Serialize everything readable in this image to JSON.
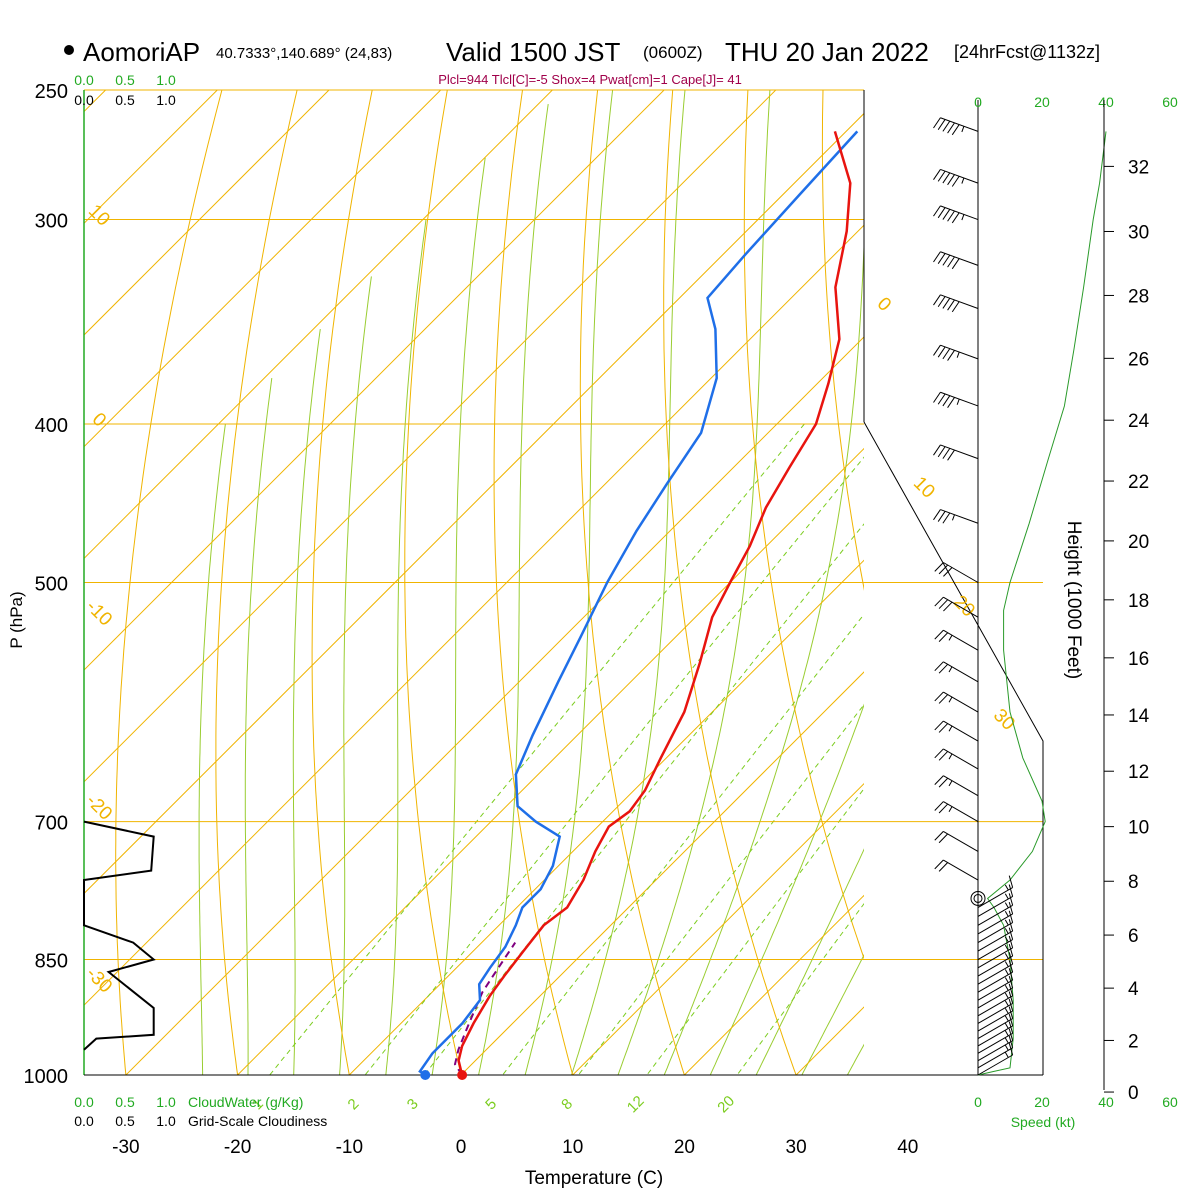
{
  "header": {
    "station": "AomoriAP",
    "coords": "40.7333°,140.689° (24,83)",
    "valid_prefix": "Valid 1500 JST",
    "valid_z": "(0600Z)",
    "valid_date": "THU 20 Jan 2022",
    "fcst": "[24hrFcst@1132z]",
    "indices": "Plcl=944 Tlcl[C]=-5 Shox=4 Pwat[cm]=1 Cape[J]= 41"
  },
  "colors": {
    "temperature": "#e8140f",
    "dewpoint": "#1f6fe8",
    "isotherm": "#f0b400",
    "dry_adiabat": "#f0b400",
    "moist_adiabat": "#9acd32",
    "mixing_ratio": "#7ccd20",
    "parcel": "#800080",
    "green_text": "#22aa22",
    "indices_text": "#a0004a"
  },
  "chart_data": {
    "type": "line",
    "title": "AomoriAP Valid 1500 JST (0600Z) THU 20 Jan 2022 [24hrFcst@1132z]",
    "xlabel": "Temperature (C)",
    "ylabel": "P (hPa)",
    "y2label": "Height (1000 Feet)",
    "y_scale": "log",
    "y_reversed": true,
    "x_ticks": [
      "-30",
      "-20",
      "-10",
      "0",
      "10",
      "20",
      "30",
      "40"
    ],
    "p_ticks": [
      "250",
      "300",
      "400",
      "500",
      "700",
      "850",
      "1000"
    ],
    "height_ticks": [
      "0",
      "2",
      "4",
      "6",
      "8",
      "10",
      "12",
      "14",
      "16",
      "18",
      "20",
      "22",
      "24",
      "26",
      "28",
      "30",
      "32"
    ],
    "isotherm_labels": [
      "10",
      "0",
      "-10",
      "-20",
      "-30",
      "0",
      "10",
      "20",
      "30"
    ],
    "mixing_ratio_labels": [
      "1",
      "2",
      "3",
      "5",
      "8",
      "12",
      "20"
    ],
    "series": [
      {
        "name": "Temperature",
        "points": [
          [
            0.1,
            1000
          ],
          [
            -1.5,
            980
          ],
          [
            -2.5,
            960
          ],
          [
            -3.5,
            930
          ],
          [
            -4.5,
            895
          ],
          [
            -5.0,
            870
          ],
          [
            -5.5,
            840
          ],
          [
            -6.0,
            810
          ],
          [
            -5.5,
            790
          ],
          [
            -6.5,
            760
          ],
          [
            -8.0,
            730
          ],
          [
            -9.0,
            705
          ],
          [
            -8.5,
            690
          ],
          [
            -9.0,
            670
          ],
          [
            -10.5,
            640
          ],
          [
            -12.5,
            600
          ],
          [
            -15.5,
            560
          ],
          [
            -18.5,
            525
          ],
          [
            -20.0,
            500
          ],
          [
            -21.5,
            475
          ],
          [
            -23.5,
            450
          ],
          [
            -25.0,
            425
          ],
          [
            -26.5,
            400
          ],
          [
            -29.0,
            378
          ],
          [
            -32.0,
            355
          ],
          [
            -37.0,
            330
          ],
          [
            -41.0,
            305
          ],
          [
            -45.0,
            285
          ],
          [
            -51.0,
            265
          ]
        ]
      },
      {
        "name": "Dewpoint",
        "points": [
          [
            -3.2,
            1000
          ],
          [
            -4.0,
            995
          ],
          [
            -4.5,
            970
          ],
          [
            -4.5,
            930
          ],
          [
            -5.0,
            900
          ],
          [
            -6.5,
            880
          ],
          [
            -7.0,
            860
          ],
          [
            -7.5,
            835
          ],
          [
            -8.5,
            810
          ],
          [
            -9.5,
            790
          ],
          [
            -9.5,
            770
          ],
          [
            -10.5,
            745
          ],
          [
            -12.5,
            715
          ],
          [
            -16.0,
            700
          ],
          [
            -19.0,
            685
          ],
          [
            -22.0,
            655
          ],
          [
            -24.0,
            620
          ],
          [
            -26.5,
            575
          ],
          [
            -28.5,
            540
          ],
          [
            -31.0,
            500
          ],
          [
            -33.0,
            465
          ],
          [
            -34.5,
            435
          ],
          [
            -36.0,
            405
          ],
          [
            -39.5,
            375
          ],
          [
            -44.0,
            350
          ],
          [
            -47.5,
            335
          ],
          [
            -48.0,
            315
          ],
          [
            -48.5,
            290
          ],
          [
            -49.0,
            265
          ]
        ]
      },
      {
        "name": "Parcel",
        "points": [
          [
            0.1,
            1000
          ],
          [
            -1.5,
            985
          ],
          [
            -2.5,
            965
          ],
          [
            -3.5,
            940
          ],
          [
            -4.5,
            915
          ],
          [
            -5.5,
            890
          ],
          [
            -6.0,
            870
          ],
          [
            -6.5,
            850
          ],
          [
            -7.0,
            830
          ]
        ]
      }
    ],
    "wind_barbs": [
      {
        "p": 1000,
        "speed": 15,
        "dir": 60
      },
      {
        "p": 990,
        "speed": 15,
        "dir": 60
      },
      {
        "p": 980,
        "speed": 15,
        "dir": 60
      },
      {
        "p": 970,
        "speed": 15,
        "dir": 60
      },
      {
        "p": 960,
        "speed": 15,
        "dir": 60
      },
      {
        "p": 950,
        "speed": 15,
        "dir": 60
      },
      {
        "p": 940,
        "speed": 15,
        "dir": 60
      },
      {
        "p": 930,
        "speed": 15,
        "dir": 60
      },
      {
        "p": 920,
        "speed": 15,
        "dir": 60
      },
      {
        "p": 910,
        "speed": 15,
        "dir": 60
      },
      {
        "p": 900,
        "speed": 15,
        "dir": 60
      },
      {
        "p": 890,
        "speed": 15,
        "dir": 60
      },
      {
        "p": 880,
        "speed": 15,
        "dir": 60
      },
      {
        "p": 870,
        "speed": 15,
        "dir": 60
      },
      {
        "p": 860,
        "speed": 15,
        "dir": 60
      },
      {
        "p": 850,
        "speed": 15,
        "dir": 60
      },
      {
        "p": 840,
        "speed": 15,
        "dir": 60
      },
      {
        "p": 830,
        "speed": 15,
        "dir": 60
      },
      {
        "p": 820,
        "speed": 15,
        "dir": 60
      },
      {
        "p": 810,
        "speed": 15,
        "dir": 60
      },
      {
        "p": 800,
        "speed": 15,
        "dir": 60
      },
      {
        "p": 790,
        "speed": 15,
        "dir": 60
      },
      {
        "p": 760,
        "speed": 20,
        "dir": 300
      },
      {
        "p": 730,
        "speed": 20,
        "dir": 300
      },
      {
        "p": 700,
        "speed": 25,
        "dir": 300
      },
      {
        "p": 675,
        "speed": 25,
        "dir": 300
      },
      {
        "p": 650,
        "speed": 25,
        "dir": 300
      },
      {
        "p": 625,
        "speed": 25,
        "dir": 300
      },
      {
        "p": 600,
        "speed": 25,
        "dir": 300
      },
      {
        "p": 575,
        "speed": 25,
        "dir": 300
      },
      {
        "p": 550,
        "speed": 25,
        "dir": 300
      },
      {
        "p": 525,
        "speed": 30,
        "dir": 300
      },
      {
        "p": 500,
        "speed": 30,
        "dir": 300
      },
      {
        "p": 460,
        "speed": 35,
        "dir": 290
      },
      {
        "p": 420,
        "speed": 40,
        "dir": 290
      },
      {
        "p": 390,
        "speed": 45,
        "dir": 290
      },
      {
        "p": 365,
        "speed": 45,
        "dir": 290
      },
      {
        "p": 340,
        "speed": 50,
        "dir": 290
      },
      {
        "p": 320,
        "speed": 50,
        "dir": 290
      },
      {
        "p": 300,
        "speed": 55,
        "dir": 290
      },
      {
        "p": 285,
        "speed": 55,
        "dir": 290
      },
      {
        "p": 265,
        "speed": 55,
        "dir": 290
      }
    ],
    "calm_marker_p": 780,
    "speed_profile": [
      [
        0,
        1000
      ],
      [
        5,
        995
      ],
      [
        10,
        990
      ],
      [
        11,
        950
      ],
      [
        11,
        900
      ],
      [
        10,
        850
      ],
      [
        8,
        810
      ],
      [
        5,
        790
      ],
      [
        3,
        780
      ],
      [
        10,
        760
      ],
      [
        17,
        730
      ],
      [
        21,
        700
      ],
      [
        20,
        680
      ],
      [
        14,
        640
      ],
      [
        10,
        600
      ],
      [
        8,
        550
      ],
      [
        8,
        520
      ],
      [
        10,
        500
      ],
      [
        16,
        460
      ],
      [
        22,
        420
      ],
      [
        27,
        390
      ],
      [
        30,
        360
      ],
      [
        33,
        330
      ],
      [
        36,
        300
      ],
      [
        38,
        285
      ],
      [
        40,
        265
      ]
    ],
    "speed_axis": {
      "label": "Speed (kt)",
      "ticks": [
        "0",
        "20",
        "40",
        "60"
      ]
    },
    "cloud_axis": {
      "cloudwater_label": "CloudWater (g/Kg)",
      "cloudiness_label": "Grid-Scale Cloudiness",
      "green_ticks": [
        "0.0",
        "0.5",
        "1.0"
      ],
      "black_ticks": [
        "0.0",
        "0.5",
        "1.0"
      ]
    },
    "cloudiness_profile": [
      [
        0,
        700
      ],
      [
        0.85,
        715
      ],
      [
        0.82,
        750
      ],
      [
        0,
        760
      ],
      [
        0,
        810
      ],
      [
        0.6,
        830
      ],
      [
        0.85,
        850
      ],
      [
        0.3,
        865
      ],
      [
        0.85,
        910
      ],
      [
        0.85,
        945
      ],
      [
        0.15,
        950
      ],
      [
        0,
        965
      ]
    ]
  }
}
